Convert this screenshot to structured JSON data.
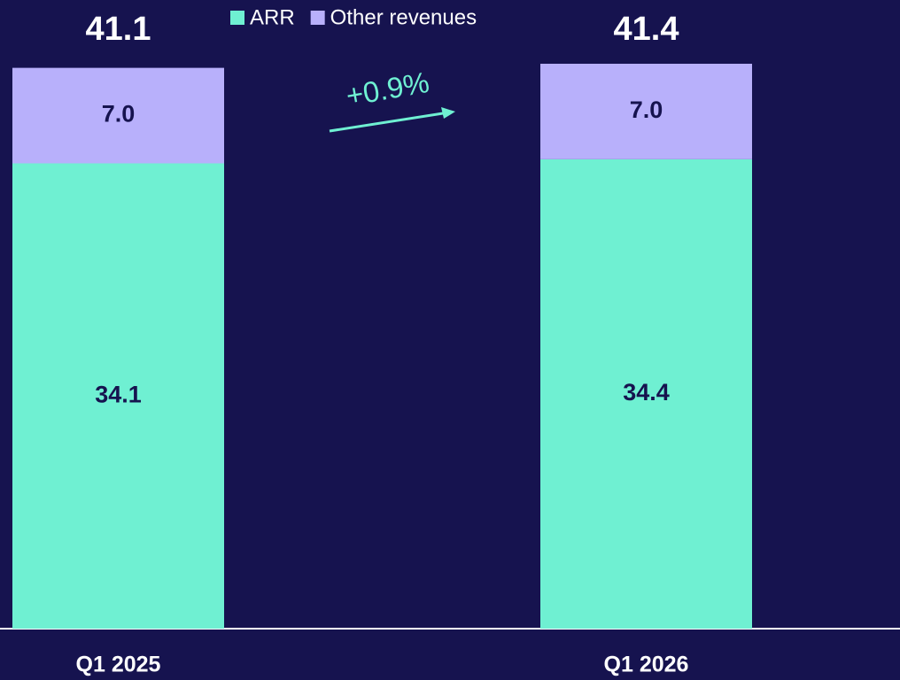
{
  "chart_data": {
    "type": "stacked_bar",
    "categories": [
      "Q1 2025",
      "Q1 2026"
    ],
    "series": [
      {
        "name": "ARR",
        "color": "#6ff0d2",
        "values": [
          34.1,
          34.4
        ]
      },
      {
        "name": "Other revenues",
        "color": "#b8b0fb",
        "values": [
          7.0,
          7.0
        ],
        "value_labels": [
          "7.0",
          "7.0"
        ]
      }
    ],
    "totals": [
      41.1,
      41.4
    ],
    "annotation": "+0.9%",
    "legend": "top"
  }
}
